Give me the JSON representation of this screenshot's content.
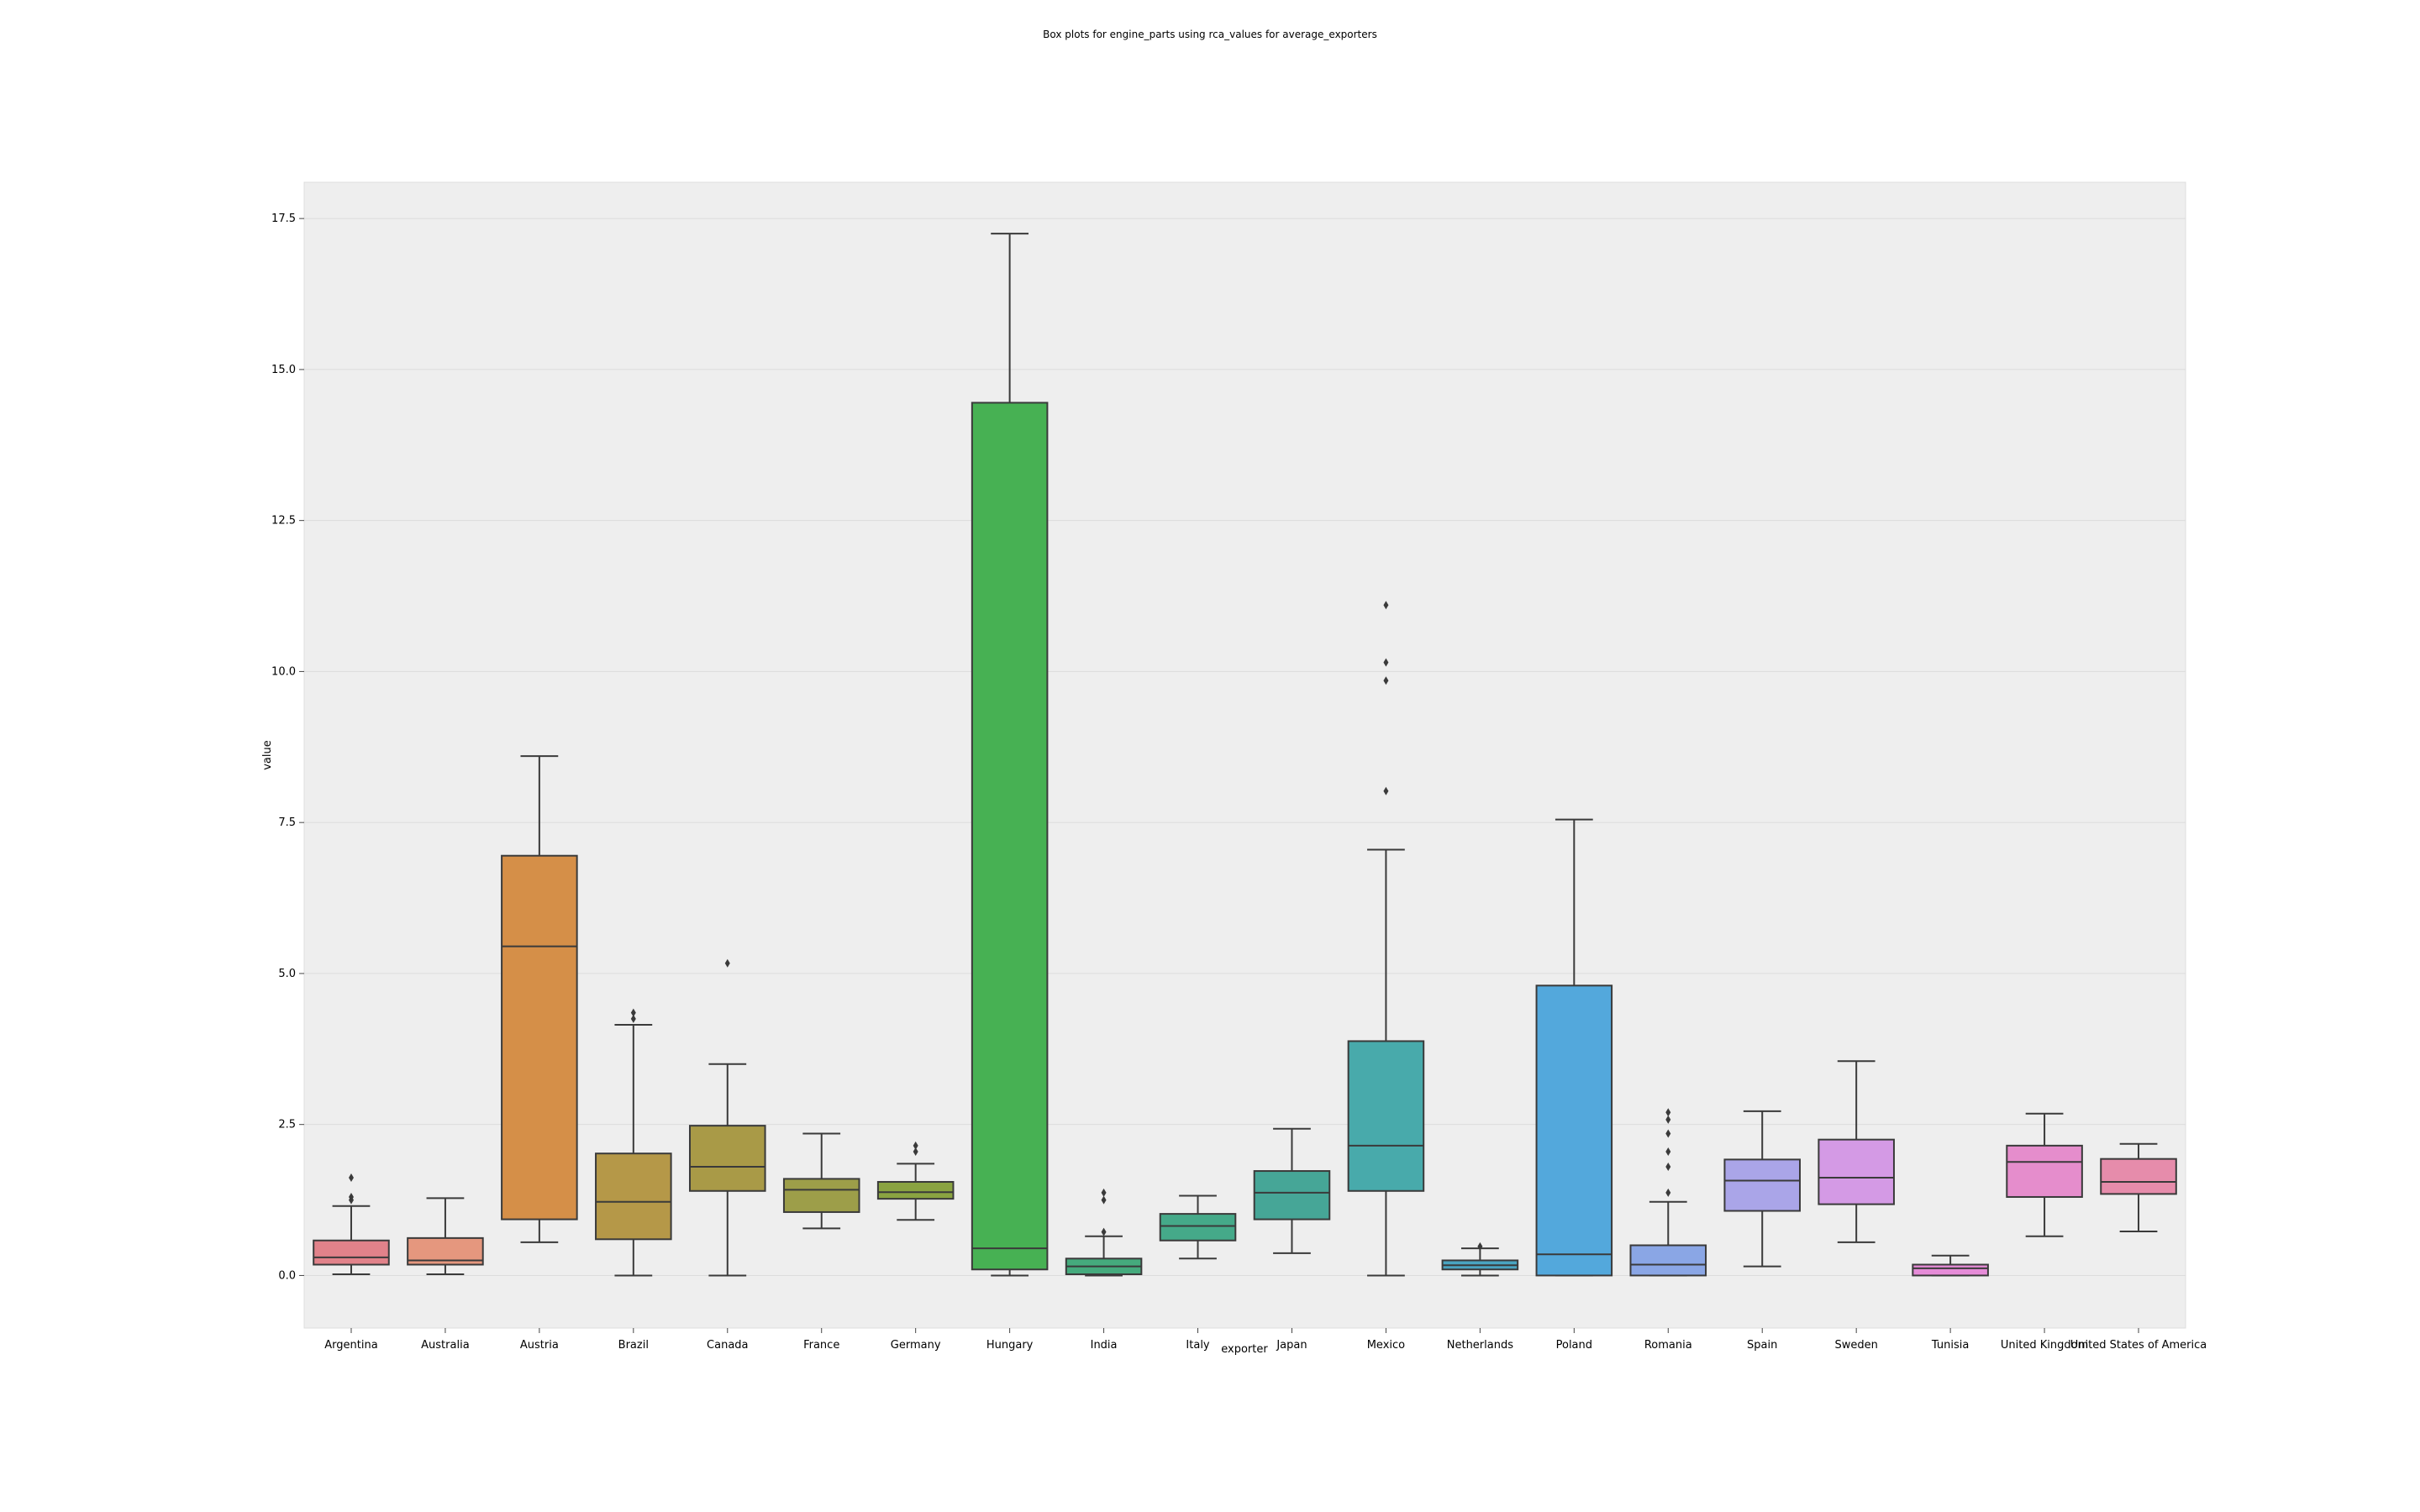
{
  "chart_data": {
    "type": "box",
    "title": "Box plots for engine_parts using rca_values for average_exporters",
    "xlabel": "exporter",
    "ylabel": "value",
    "ylim": [
      -0.87,
      18.1
    ],
    "yticks": [
      0.0,
      2.5,
      5.0,
      7.5,
      10.0,
      12.5,
      15.0,
      17.5
    ],
    "ytick_labels": [
      "0.0",
      "2.5",
      "5.0",
      "7.5",
      "10.0",
      "12.5",
      "15.0",
      "17.5"
    ],
    "grid": true,
    "categories": [
      "Argentina",
      "Australia",
      "Austria",
      "Brazil",
      "Canada",
      "France",
      "Germany",
      "Hungary",
      "India",
      "Italy",
      "Japan",
      "Mexico",
      "Netherlands",
      "Poland",
      "Romania",
      "Spain",
      "Sweden",
      "Tunisia",
      "United Kingdom",
      "United States of America"
    ],
    "series": [
      {
        "category": "Argentina",
        "color": "#e1828a",
        "whisker_low": 0.02,
        "q1": 0.18,
        "median": 0.3,
        "q3": 0.58,
        "whisker_high": 1.15,
        "outliers": [
          1.25,
          1.3,
          1.62
        ]
      },
      {
        "category": "Australia",
        "color": "#e5977e",
        "whisker_low": 0.02,
        "q1": 0.18,
        "median": 0.25,
        "q3": 0.62,
        "whisker_high": 1.28,
        "outliers": []
      },
      {
        "category": "Austria",
        "color": "#d58f48",
        "whisker_low": 0.55,
        "q1": 0.93,
        "median": 5.45,
        "q3": 6.95,
        "whisker_high": 8.6,
        "outliers": []
      },
      {
        "category": "Brazil",
        "color": "#b59848",
        "whisker_low": 0.0,
        "q1": 0.6,
        "median": 1.22,
        "q3": 2.02,
        "whisker_high": 4.15,
        "outliers": [
          4.25,
          4.35
        ]
      },
      {
        "category": "Canada",
        "color": "#a99a47",
        "whisker_low": 0.0,
        "q1": 1.4,
        "median": 1.8,
        "q3": 2.48,
        "whisker_high": 3.5,
        "outliers": [
          5.17
        ]
      },
      {
        "category": "France",
        "color": "#9d9e49",
        "whisker_low": 0.78,
        "q1": 1.05,
        "median": 1.42,
        "q3": 1.6,
        "whisker_high": 2.35,
        "outliers": []
      },
      {
        "category": "Germany",
        "color": "#8aa341",
        "whisker_low": 0.92,
        "q1": 1.27,
        "median": 1.38,
        "q3": 1.55,
        "whisker_high": 1.85,
        "outliers": [
          2.05,
          2.15
        ]
      },
      {
        "category": "Hungary",
        "color": "#47b153",
        "whisker_low": 0.0,
        "q1": 0.1,
        "median": 0.45,
        "q3": 14.45,
        "whisker_high": 17.25,
        "outliers": []
      },
      {
        "category": "India",
        "color": "#45aa7d",
        "whisker_low": 0.0,
        "q1": 0.02,
        "median": 0.15,
        "q3": 0.28,
        "whisker_high": 0.65,
        "outliers": [
          0.72,
          1.25,
          1.37
        ]
      },
      {
        "category": "Italy",
        "color": "#45a989",
        "whisker_low": 0.28,
        "q1": 0.58,
        "median": 0.82,
        "q3": 1.02,
        "whisker_high": 1.32,
        "outliers": []
      },
      {
        "category": "Japan",
        "color": "#46a697",
        "whisker_low": 0.37,
        "q1": 0.93,
        "median": 1.37,
        "q3": 1.73,
        "whisker_high": 2.43,
        "outliers": []
      },
      {
        "category": "Mexico",
        "color": "#48aaab",
        "whisker_low": 0.0,
        "q1": 1.4,
        "median": 2.15,
        "q3": 3.88,
        "whisker_high": 7.05,
        "outliers": [
          8.02,
          9.85,
          10.15,
          11.1
        ]
      },
      {
        "category": "Netherlands",
        "color": "#4aa4c0",
        "whisker_low": 0.0,
        "q1": 0.1,
        "median": 0.17,
        "q3": 0.25,
        "whisker_high": 0.45,
        "outliers": [
          0.48
        ]
      },
      {
        "category": "Poland",
        "color": "#53a8dc",
        "whisker_low": 0.0,
        "q1": 0.0,
        "median": 0.35,
        "q3": 4.8,
        "whisker_high": 7.55,
        "outliers": []
      },
      {
        "category": "Romania",
        "color": "#8aa6e5",
        "whisker_low": 0.0,
        "q1": 0.0,
        "median": 0.18,
        "q3": 0.5,
        "whisker_high": 1.22,
        "outliers": [
          1.37,
          1.8,
          2.05,
          2.35,
          2.58,
          2.7
        ]
      },
      {
        "category": "Spain",
        "color": "#aaa5e8",
        "whisker_low": 0.15,
        "q1": 1.07,
        "median": 1.57,
        "q3": 1.92,
        "whisker_high": 2.72,
        "outliers": []
      },
      {
        "category": "Sweden",
        "color": "#d49ae5",
        "whisker_low": 0.55,
        "q1": 1.18,
        "median": 1.62,
        "q3": 2.25,
        "whisker_high": 3.55,
        "outliers": []
      },
      {
        "category": "Tunisia",
        "color": "#e68cd8",
        "whisker_low": 0.0,
        "q1": 0.0,
        "median": 0.12,
        "q3": 0.18,
        "whisker_high": 0.33,
        "outliers": []
      },
      {
        "category": "United Kingdom",
        "color": "#e58dcc",
        "whisker_low": 0.65,
        "q1": 1.3,
        "median": 1.88,
        "q3": 2.15,
        "whisker_high": 2.68,
        "outliers": []
      },
      {
        "category": "United States of America",
        "color": "#e68cab",
        "whisker_low": 0.73,
        "q1": 1.35,
        "median": 1.55,
        "q3": 1.93,
        "whisker_high": 2.18,
        "outliers": []
      }
    ]
  }
}
